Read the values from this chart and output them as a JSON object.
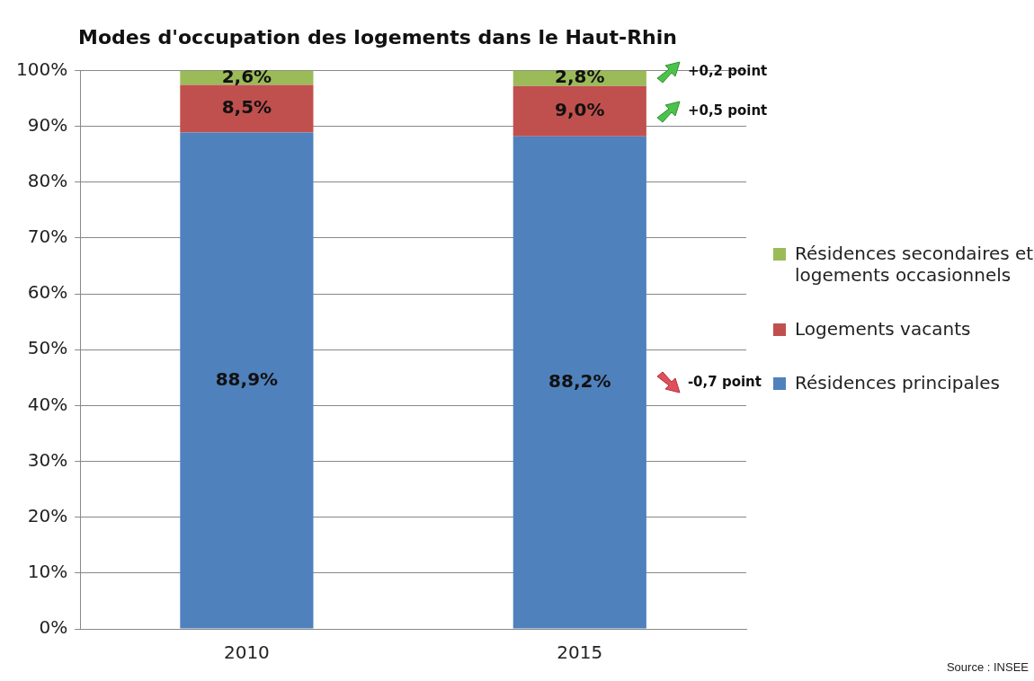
{
  "chart_data": {
    "type": "bar",
    "title": "Modes d'occupation des logements dans le Haut-Rhin",
    "categories": [
      "2010",
      "2015"
    ],
    "stacked": true,
    "series": [
      {
        "name": "Résidences principales",
        "color": "#4f81bd",
        "values": [
          88.9,
          88.2
        ],
        "value_labels": [
          "88,9%",
          "88,2%"
        ]
      },
      {
        "name": "Logements vacants",
        "color": "#c0504d",
        "values": [
          8.5,
          9.0
        ],
        "value_labels": [
          "8,5%",
          "9,0%"
        ]
      },
      {
        "name": "Résidences secondaires et logements occasionnels",
        "color": "#9bbb59",
        "values": [
          2.6,
          2.8
        ],
        "value_labels": [
          "2,6%",
          "2,8%"
        ]
      }
    ],
    "ylim": [
      0,
      100
    ],
    "yticks": [
      {
        "value": 0,
        "label": "0%"
      },
      {
        "value": 10,
        "label": "10%"
      },
      {
        "value": 20,
        "label": "20%"
      },
      {
        "value": 30,
        "label": "30%"
      },
      {
        "value": 40,
        "label": "40%"
      },
      {
        "value": 50,
        "label": "50%"
      },
      {
        "value": 60,
        "label": "60%"
      },
      {
        "value": 70,
        "label": "70%"
      },
      {
        "value": 80,
        "label": "80%"
      },
      {
        "value": 90,
        "label": "90%"
      },
      {
        "value": 100,
        "label": "100%"
      }
    ],
    "grid": "y",
    "legend": "right",
    "annotations": [
      "+0,2 point",
      "+0,5 point",
      "-0,7 point",
      "Source : INSEE"
    ]
  }
}
